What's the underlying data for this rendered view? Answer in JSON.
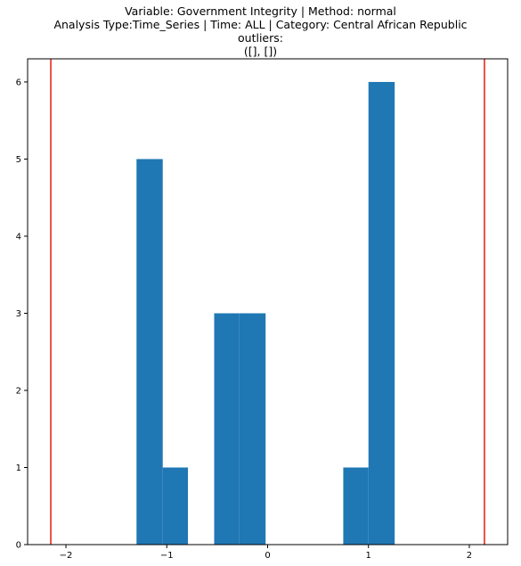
{
  "chart_data": {
    "type": "bar",
    "title_lines": [
      "Variable: Government Integrity | Method: normal",
      "Analysis Type:Time_Series | Time: ALL | Category: Central African Republic",
      "outliers:",
      "([], [])"
    ],
    "xlabel": "",
    "ylabel": "",
    "xlim": [
      -2.38,
      2.38
    ],
    "ylim": [
      0,
      6.3
    ],
    "x_ticks": [
      -2,
      -1,
      0,
      1,
      2
    ],
    "x_tick_labels": [
      "−2",
      "−1",
      "0",
      "1",
      "2"
    ],
    "y_ticks": [
      0,
      1,
      2,
      3,
      4,
      5,
      6
    ],
    "y_tick_labels": [
      "0",
      "1",
      "2",
      "3",
      "4",
      "5",
      "6"
    ],
    "bins": [
      {
        "x0": -1.3,
        "x1": -1.04,
        "count": 5
      },
      {
        "x0": -1.04,
        "x1": -0.79,
        "count": 1
      },
      {
        "x0": -0.79,
        "x1": -0.53,
        "count": 0
      },
      {
        "x0": -0.53,
        "x1": -0.28,
        "count": 3
      },
      {
        "x0": -0.28,
        "x1": -0.02,
        "count": 3
      },
      {
        "x0": -0.02,
        "x1": 0.23,
        "count": 0
      },
      {
        "x0": 0.23,
        "x1": 0.49,
        "count": 0
      },
      {
        "x0": 0.49,
        "x1": 0.75,
        "count": 0
      },
      {
        "x0": 0.75,
        "x1": 1.0,
        "count": 1
      },
      {
        "x0": 1.0,
        "x1": 1.26,
        "count": 6
      }
    ],
    "threshold_lines": [
      -2.15,
      2.15
    ],
    "grid": false,
    "colors": {
      "bar": "#1f77b4",
      "threshold": "#e8281e",
      "axis": "#000000"
    }
  }
}
